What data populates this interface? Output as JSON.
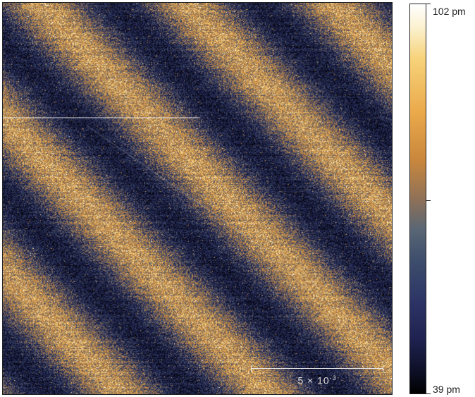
{
  "scan": {
    "scale_bar_label": "5 × 10",
    "scale_bar_exponent": "-3"
  },
  "colorbar": {
    "max_label": "102 pm",
    "min_label": "39 pm",
    "colors": [
      "#000000",
      "#1f2250",
      "#3d4d6c",
      "#8f7157",
      "#c9873d",
      "#f7d27a",
      "#ffffff"
    ]
  }
}
